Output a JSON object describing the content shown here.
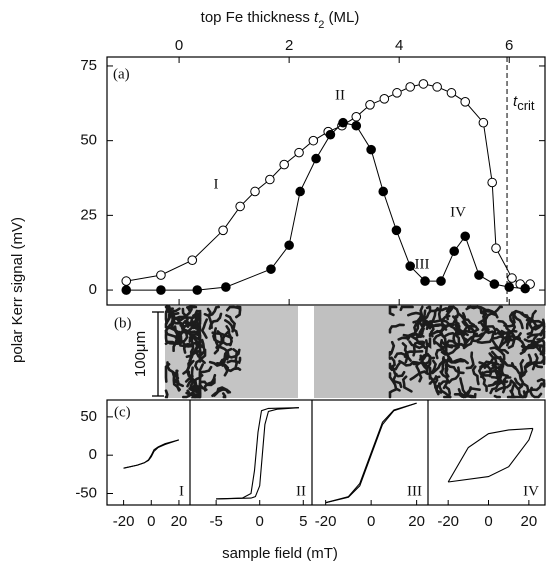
{
  "chart_data": [
    {
      "type": "line",
      "panel_label": "(a)",
      "y_label": "polar Kerr signal (mV)",
      "x_label": {
        "prefix": "top Fe thickness ",
        "var": "t",
        "sub": "2",
        "suffix": " (ML)"
      },
      "xlim": [
        -1.31,
        6.65
      ],
      "xticks": [
        0,
        2,
        4,
        6
      ],
      "ylim": [
        -5,
        78
      ],
      "yticks": [
        0,
        25,
        50,
        75
      ],
      "series": [
        {
          "marker": "open",
          "color": "#000000",
          "x": [
            -0.96,
            -0.33,
            0.24,
            0.8,
            1.11,
            1.38,
            1.65,
            1.91,
            2.18,
            2.44,
            2.71,
            2.96,
            3.22,
            3.47,
            3.73,
            3.96,
            4.2,
            4.44,
            4.69,
            4.95,
            5.2,
            5.53,
            5.69,
            5.76,
            6.05,
            6.2,
            6.38
          ],
          "values": [
            3,
            5,
            10,
            20,
            28,
            33,
            37,
            42,
            46,
            50,
            53,
            55,
            58,
            62,
            64,
            66,
            68,
            69,
            68,
            66,
            63,
            56,
            36,
            14,
            4,
            2,
            2
          ]
        },
        {
          "marker": "filled",
          "color": "#000000",
          "x": [
            -0.96,
            -0.33,
            0.33,
            0.85,
            1.67,
            2.0,
            2.2,
            2.49,
            2.75,
            2.98,
            3.22,
            3.49,
            3.71,
            3.95,
            4.2,
            4.47,
            4.76,
            5.0,
            5.2,
            5.45,
            5.73,
            6.0,
            6.29
          ],
          "values": [
            0,
            0,
            0,
            1,
            7,
            15,
            33,
            44,
            52,
            56,
            55,
            47,
            33,
            20,
            8,
            3,
            3,
            13,
            18,
            5,
            2,
            1,
            0.5
          ]
        }
      ],
      "vline": {
        "x": 5.96,
        "style": "dashed",
        "label": "t",
        "label_sub": "crit"
      },
      "annotations": [
        "I",
        "II",
        "III",
        "IV"
      ]
    },
    {
      "type": "image",
      "panel_label": "(b)",
      "scale_bar_label": "100μm"
    },
    {
      "type": "loops",
      "panel_label": "(c)",
      "x_label": "sample field (mT)",
      "ylim": [
        -65,
        72
      ],
      "yticks": [
        -50,
        0,
        50
      ],
      "subplots": [
        {
          "label": "I",
          "xlim": [
            -32,
            28
          ],
          "xticks": [
            -20,
            0,
            20
          ],
          "series": [
            {
              "color": "#000000",
              "x": [
                -20,
                -10,
                -5,
                -2,
                0,
                2,
                5,
                10,
                20
              ],
              "values": [
                -17,
                -13,
                -10,
                -7,
                -2,
                5,
                10,
                14,
                20
              ]
            },
            {
              "color": "#000000",
              "x": [
                20,
                10,
                5,
                2,
                0,
                -2,
                -5,
                -10,
                -20
              ],
              "values": [
                20,
                15,
                11,
                7,
                0,
                -6,
                -10,
                -13,
                -17
              ]
            }
          ]
        },
        {
          "label": "II",
          "xlim": [
            -8,
            6
          ],
          "xticks": [
            -5,
            0,
            5
          ],
          "series": [
            {
              "color": "#000000",
              "x": [
                -5,
                -1,
                -0.5,
                0,
                0.3,
                0.6,
                1,
                2,
                4.5
              ],
              "values": [
                -57,
                -56,
                -54,
                -40,
                0,
                40,
                57,
                60,
                62
              ]
            },
            {
              "color": "#000000",
              "x": [
                4.5,
                1,
                0.2,
                -0.2,
                -0.6,
                -1,
                -2,
                -5
              ],
              "values": [
                62,
                61,
                58,
                30,
                -20,
                -50,
                -56,
                -57
              ]
            }
          ]
        },
        {
          "label": "III",
          "xlim": [
            -26,
            25
          ],
          "xticks": [
            -20,
            0,
            20
          ],
          "series": [
            {
              "color": "#000000",
              "x": [
                -20,
                -10,
                -5,
                0,
                5,
                10,
                20
              ],
              "values": [
                -62,
                -55,
                -40,
                0,
                40,
                58,
                68
              ]
            },
            {
              "color": "#000000",
              "x": [
                20,
                10,
                5,
                0,
                -5,
                -10,
                -20
              ],
              "values": [
                68,
                59,
                43,
                3,
                -37,
                -54,
                -62
              ]
            }
          ]
        },
        {
          "label": "IV",
          "xlim": [
            -30,
            28
          ],
          "xticks": [
            -20,
            0,
            20
          ],
          "series": [
            {
              "color": "#000000",
              "x": [
                -20,
                0,
                10,
                20,
                22
              ],
              "values": [
                -35,
                -28,
                -15,
                20,
                35
              ]
            },
            {
              "color": "#000000",
              "x": [
                22,
                10,
                0,
                -10,
                -20
              ],
              "values": [
                35,
                33,
                28,
                10,
                -35
              ]
            }
          ]
        }
      ]
    }
  ]
}
